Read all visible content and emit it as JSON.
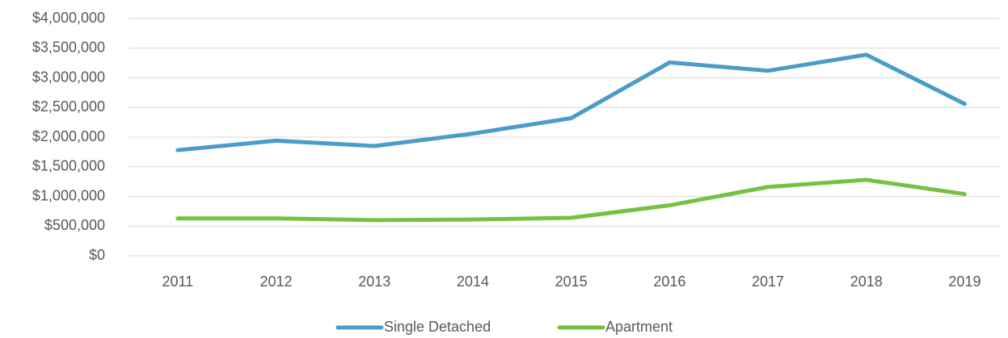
{
  "chart_data": {
    "type": "line",
    "categories": [
      "2011",
      "2012",
      "2013",
      "2014",
      "2015",
      "2016",
      "2017",
      "2018",
      "2019"
    ],
    "series": [
      {
        "name": "Single Detached",
        "color": "#4a9cc9",
        "values": [
          1780000,
          1940000,
          1850000,
          2060000,
          2320000,
          3260000,
          3120000,
          3390000,
          2560000
        ]
      },
      {
        "name": "Apartment",
        "color": "#76c043",
        "values": [
          630000,
          630000,
          600000,
          610000,
          640000,
          850000,
          1160000,
          1280000,
          1040000
        ]
      }
    ],
    "ylim": [
      0,
      4000000
    ],
    "yticks": [
      {
        "value": 0,
        "label": "$0"
      },
      {
        "value": 500000,
        "label": "$500,000"
      },
      {
        "value": 1000000,
        "label": "$1,000,000"
      },
      {
        "value": 1500000,
        "label": "$1,500,000"
      },
      {
        "value": 2000000,
        "label": "$2,000,000"
      },
      {
        "value": 2500000,
        "label": "$2,500,000"
      },
      {
        "value": 3000000,
        "label": "$3,000,000"
      },
      {
        "value": 3500000,
        "label": "$3,500,000"
      },
      {
        "value": 4000000,
        "label": "$4,000,000"
      }
    ],
    "grid": true,
    "legend": "bottom"
  }
}
